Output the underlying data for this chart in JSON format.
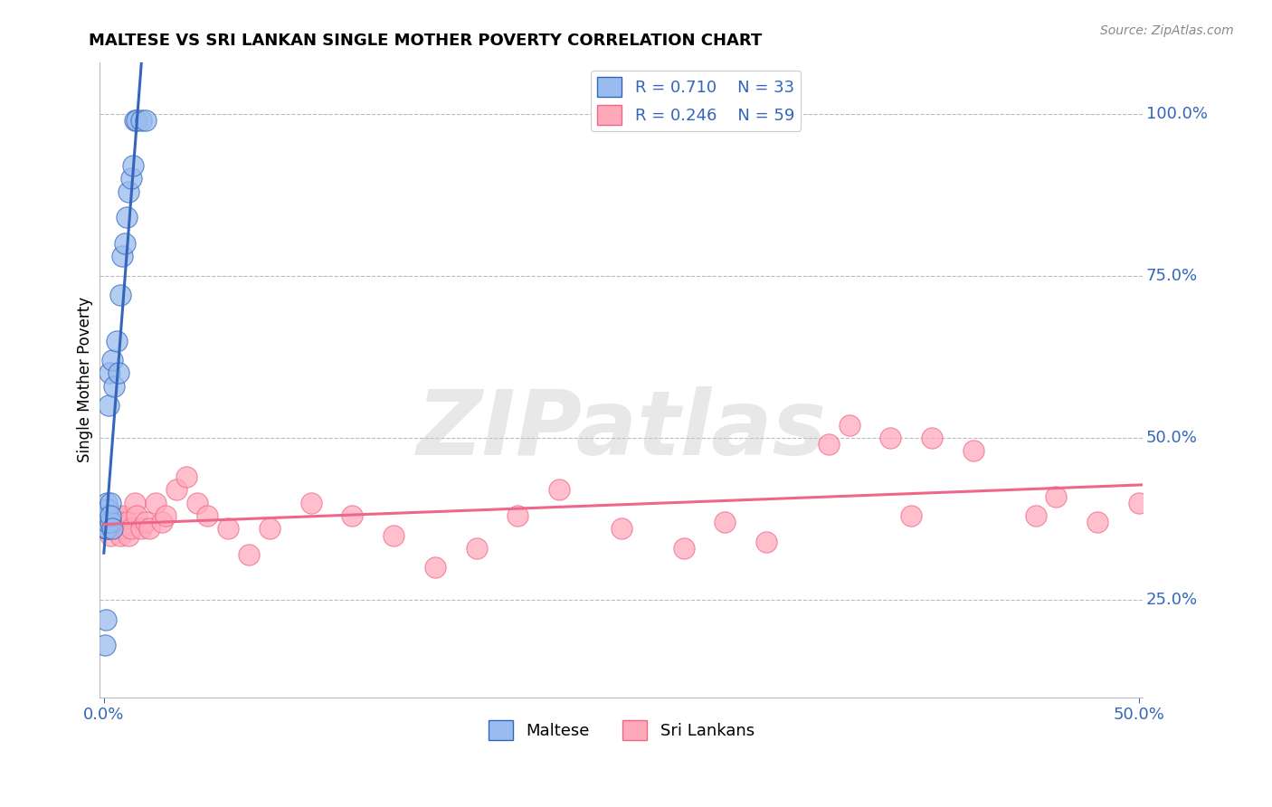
{
  "title": "MALTESE VS SRI LANKAN SINGLE MOTHER POVERTY CORRELATION CHART",
  "source": "Source: ZipAtlas.com",
  "ylabel": "Single Mother Poverty",
  "xlim": [
    -0.002,
    0.502
  ],
  "ylim": [
    0.1,
    1.08
  ],
  "xtick_positions": [
    0.0,
    0.5
  ],
  "xtick_labels": [
    "0.0%",
    "50.0%"
  ],
  "ytick_labels_right": [
    [
      "100.0%",
      1.0
    ],
    [
      "75.0%",
      0.75
    ],
    [
      "50.0%",
      0.5
    ],
    [
      "25.0%",
      0.25
    ]
  ],
  "maltese_R": 0.71,
  "maltese_N": 33,
  "srilankan_R": 0.246,
  "srilankan_N": 59,
  "blue_scatter_color": "#99BBEE",
  "pink_scatter_color": "#FFAABB",
  "blue_line_color": "#3366BB",
  "pink_line_color": "#EE6688",
  "watermark_text": "ZIPatlas",
  "legend_label_maltese": "Maltese",
  "legend_label_srilankans": "Sri Lankans",
  "maltese_x": [
    0.0005,
    0.0008,
    0.001,
    0.001,
    0.0012,
    0.0013,
    0.0015,
    0.0015,
    0.0017,
    0.002,
    0.002,
    0.002,
    0.0022,
    0.0025,
    0.003,
    0.003,
    0.003,
    0.004,
    0.004,
    0.005,
    0.006,
    0.007,
    0.008,
    0.009,
    0.01,
    0.011,
    0.012,
    0.013,
    0.014,
    0.015,
    0.016,
    0.018,
    0.02
  ],
  "maltese_y": [
    0.18,
    0.22,
    0.36,
    0.38,
    0.37,
    0.38,
    0.36,
    0.4,
    0.38,
    0.37,
    0.38,
    0.39,
    0.55,
    0.6,
    0.37,
    0.4,
    0.38,
    0.36,
    0.62,
    0.58,
    0.65,
    0.6,
    0.72,
    0.78,
    0.8,
    0.84,
    0.88,
    0.9,
    0.92,
    0.99,
    0.99,
    0.99,
    0.99
  ],
  "srilankan_x": [
    0.001,
    0.001,
    0.002,
    0.002,
    0.003,
    0.003,
    0.003,
    0.004,
    0.004,
    0.005,
    0.005,
    0.005,
    0.006,
    0.006,
    0.007,
    0.007,
    0.008,
    0.008,
    0.009,
    0.01,
    0.011,
    0.012,
    0.013,
    0.015,
    0.016,
    0.018,
    0.02,
    0.022,
    0.025,
    0.028,
    0.03,
    0.035,
    0.04,
    0.045,
    0.05,
    0.06,
    0.07,
    0.08,
    0.1,
    0.12,
    0.14,
    0.16,
    0.18,
    0.2,
    0.22,
    0.25,
    0.28,
    0.3,
    0.32,
    0.35,
    0.36,
    0.38,
    0.39,
    0.4,
    0.42,
    0.45,
    0.46,
    0.48,
    0.5
  ],
  "srilankan_y": [
    0.37,
    0.38,
    0.36,
    0.37,
    0.35,
    0.36,
    0.38,
    0.37,
    0.36,
    0.36,
    0.38,
    0.37,
    0.36,
    0.38,
    0.37,
    0.36,
    0.37,
    0.35,
    0.38,
    0.36,
    0.37,
    0.35,
    0.36,
    0.4,
    0.38,
    0.36,
    0.37,
    0.36,
    0.4,
    0.37,
    0.38,
    0.42,
    0.44,
    0.4,
    0.38,
    0.36,
    0.32,
    0.36,
    0.4,
    0.38,
    0.35,
    0.3,
    0.33,
    0.38,
    0.42,
    0.36,
    0.33,
    0.37,
    0.34,
    0.49,
    0.52,
    0.5,
    0.38,
    0.5,
    0.48,
    0.38,
    0.41,
    0.37,
    0.4
  ]
}
